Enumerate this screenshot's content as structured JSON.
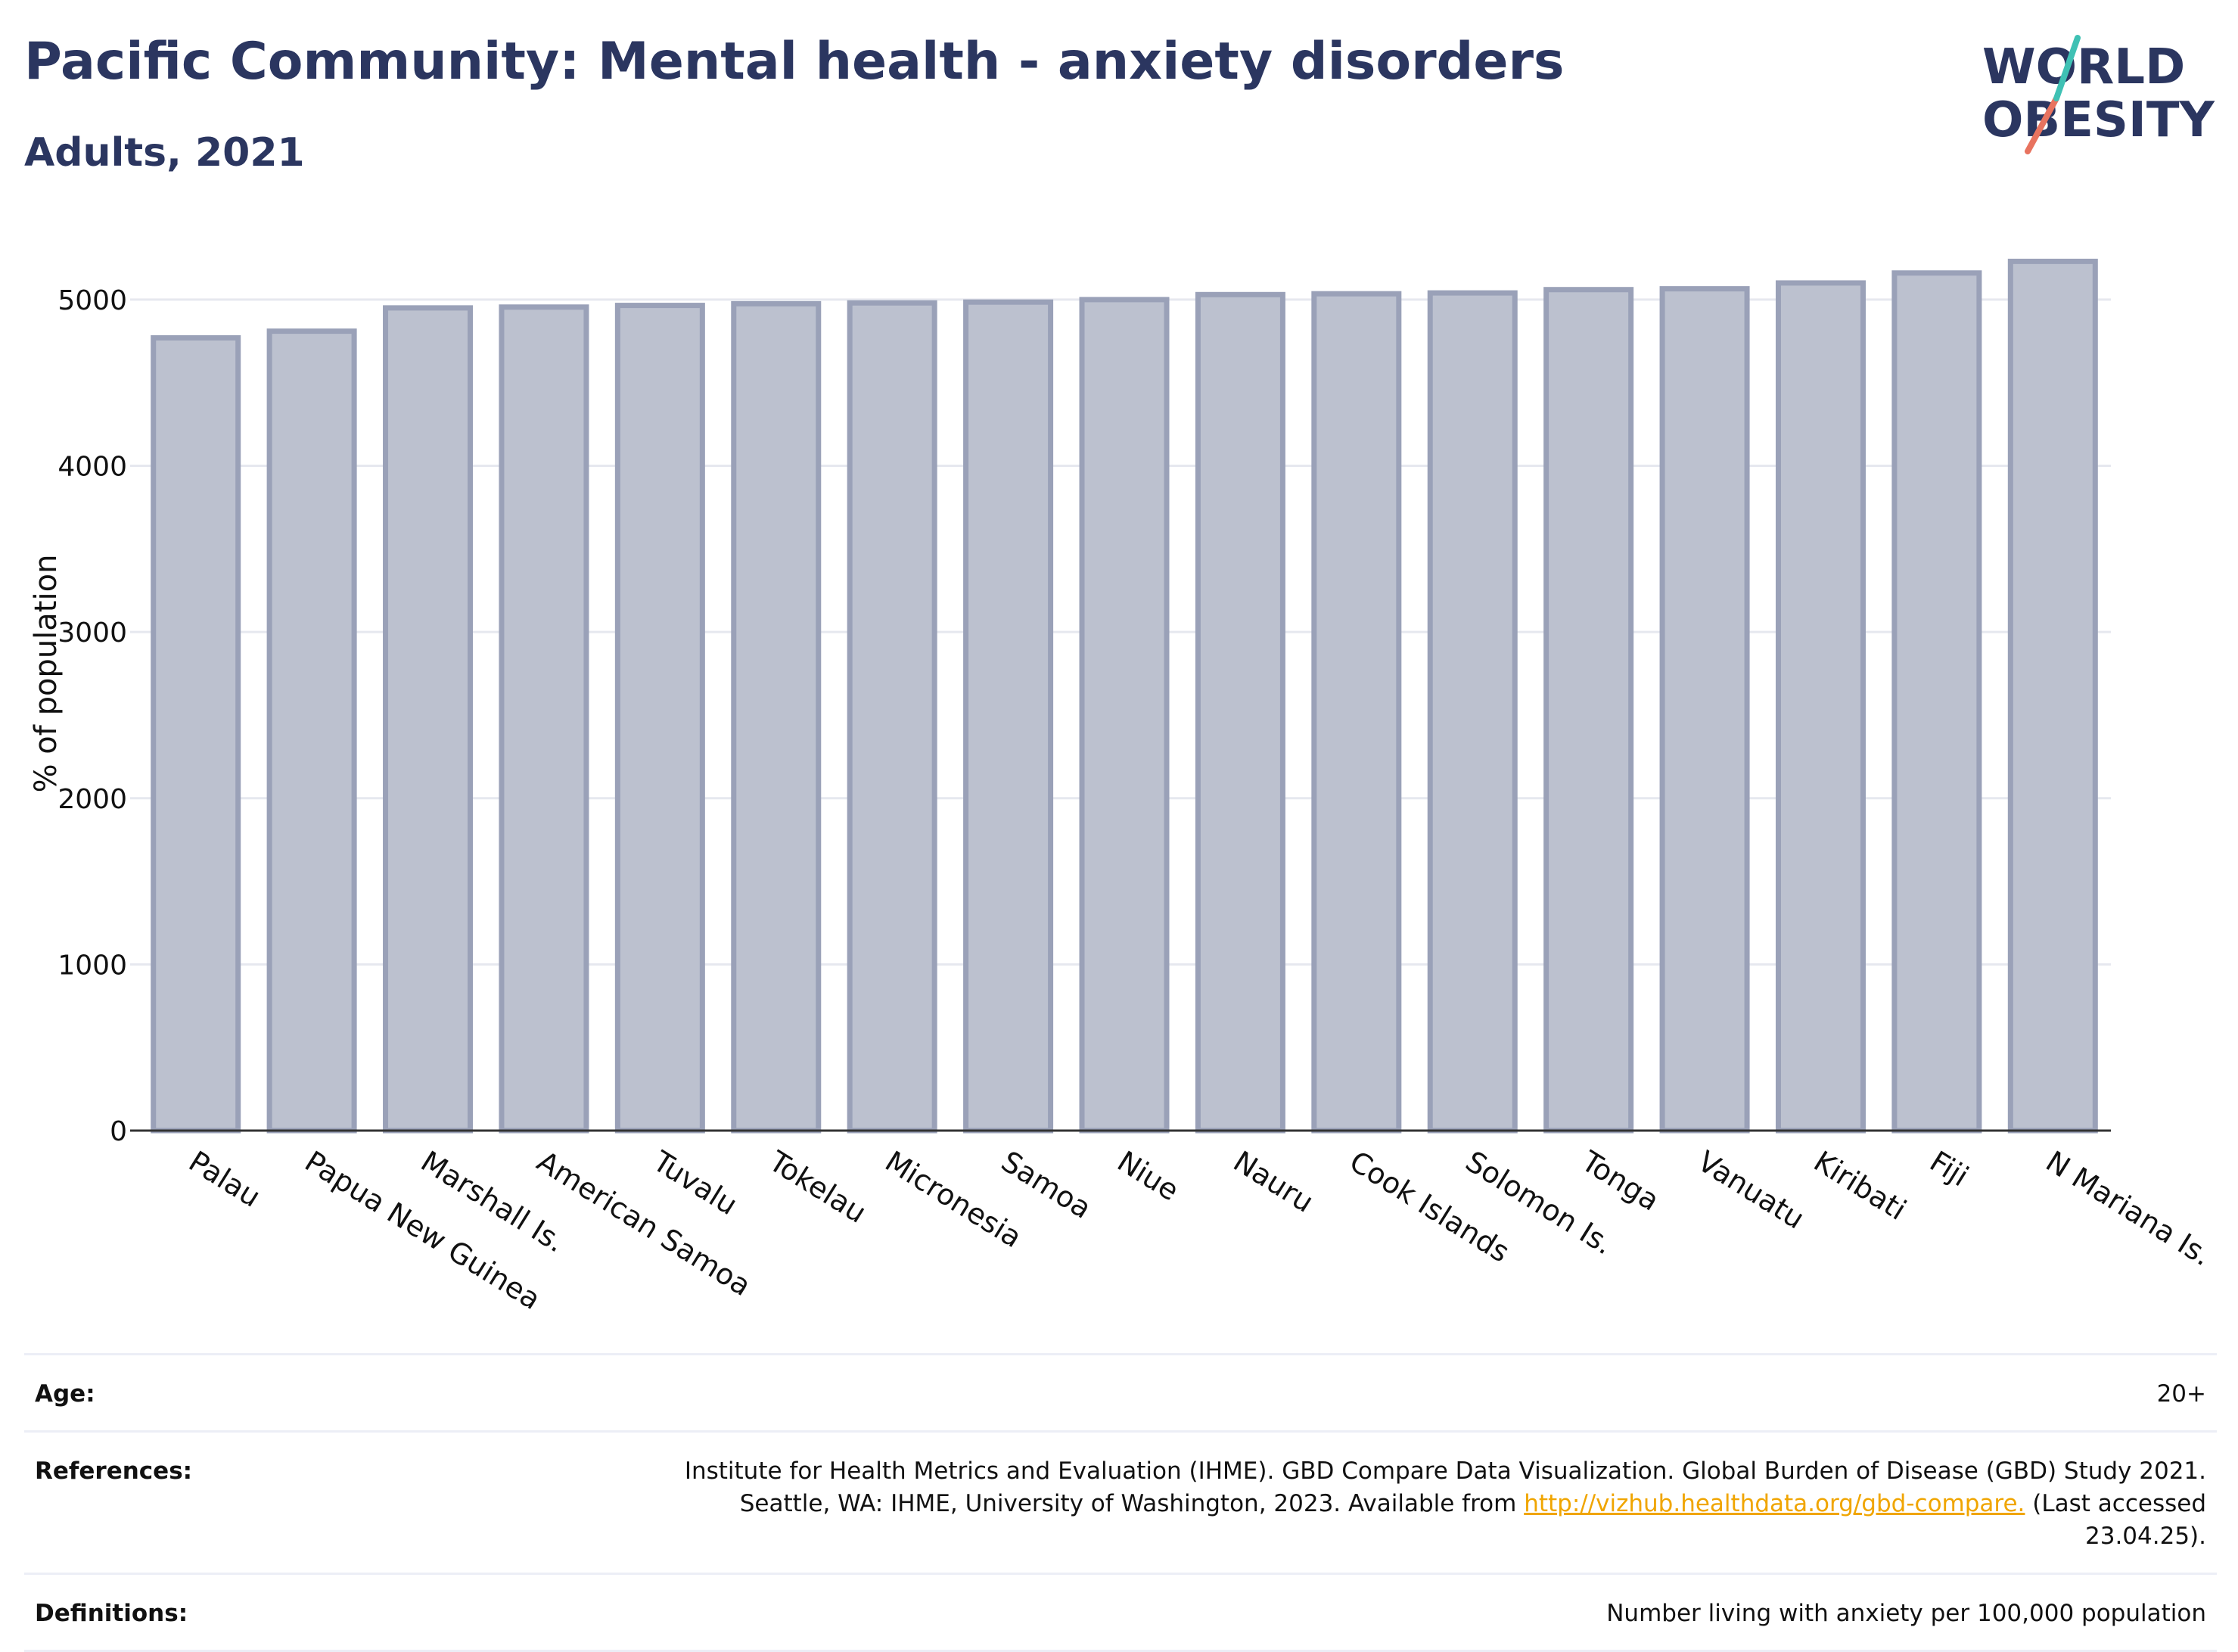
{
  "header": {
    "title": "Pacific Community: Mental health - anxiety disorders",
    "subtitle": "Adults, 2021"
  },
  "logo": {
    "line1": "WORLD",
    "line2": "OBESITY"
  },
  "colors": {
    "bar_fill": "#bcc1cf",
    "bar_stroke": "#9aa1b8",
    "title": "#2b3660",
    "link": "#f0a500"
  },
  "chart_data": {
    "type": "bar",
    "categories": [
      "Palau",
      "Papua New Guinea",
      "Marshall Is.",
      "American Samoa",
      "Tuvalu",
      "Tokelau",
      "Micronesia",
      "Samoa",
      "Niue",
      "Nauru",
      "Cook Islands",
      "Solomon Is.",
      "Tonga",
      "Vanuatu",
      "Kiribati",
      "Fiji",
      "N Mariana Is."
    ],
    "values": [
      4770,
      4810,
      4950,
      4955,
      4965,
      4975,
      4980,
      4985,
      5000,
      5030,
      5035,
      5040,
      5060,
      5065,
      5100,
      5160,
      5230
    ],
    "ylabel": "% of population",
    "xlabel": "",
    "ylim": [
      0,
      5300
    ],
    "yticks": [
      0,
      1000,
      2000,
      3000,
      4000,
      5000
    ],
    "grid": true,
    "legend": "none"
  },
  "info": {
    "age_label": "Age:",
    "age_value": "20+",
    "references_label": "References:",
    "references_text": "Institute for Health Metrics and Evaluation (IHME). GBD Compare Data Visualization. Global Burden of Disease (GBD) Study 2021. Seattle, WA: IHME, University of Washington, 2023. Available from",
    "references_link": "http://vizhub.healthdata.org/gbd-compare.",
    "references_suffix": "(Last accessed 23.04.25).",
    "definitions_label": "Definitions:",
    "definitions_value": "Number living with anxiety per 100,000 population"
  }
}
